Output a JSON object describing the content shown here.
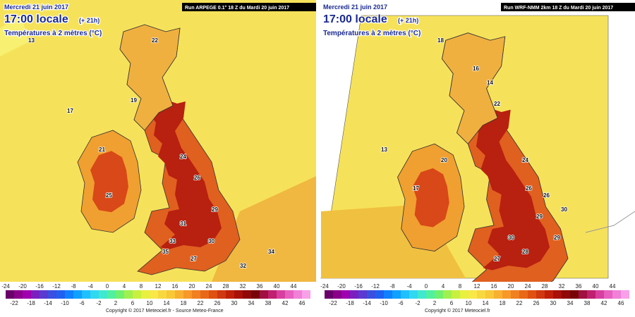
{
  "panels": [
    {
      "date": "Mercredi 21 juin 2017",
      "time": "17:00 locale",
      "lead": "(+ 21h)",
      "variable": "Températures à 2 mètres (°C)",
      "run": "Run ARPEGE 0.1° 18 Z du Mardi 20 juin 2017",
      "copyright": "Copyright © 2017 Meteociel.fr - Source Meteo-France",
      "map_labels": [
        "13",
        "17",
        "21",
        "25",
        "22",
        "19",
        "24",
        "26",
        "29",
        "31",
        "33",
        "35",
        "32",
        "30",
        "27",
        "34"
      ]
    },
    {
      "date": "Mercredi 21 juin 2017",
      "time": "17:00 locale",
      "lead": "(+ 21h)",
      "variable": "Températures à 2 mètres (°C)",
      "run": "Run WRF-NMM 2km 18 Z du Mardi 20 juin 2017",
      "copyright": "Copyright © 2017 Meteociel.fr",
      "map_labels": [
        "13",
        "17",
        "18",
        "20",
        "22",
        "24",
        "26",
        "29",
        "30",
        "30",
        "28",
        "27",
        "29",
        "26",
        "16",
        "14"
      ]
    }
  ],
  "legend": {
    "top_labels": [
      "-24",
      "-20",
      "-16",
      "-12",
      "-8",
      "-4",
      "0",
      "4",
      "8",
      "12",
      "16",
      "20",
      "24",
      "28",
      "32",
      "36",
      "40",
      "44"
    ],
    "bottom_labels": [
      "-22",
      "-18",
      "-14",
      "-10",
      "-6",
      "-2",
      "2",
      "6",
      "10",
      "14",
      "18",
      "22",
      "26",
      "30",
      "34",
      "38",
      "42",
      "46"
    ],
    "colors": [
      "#6a006a",
      "#8a008a",
      "#a000b0",
      "#7a20c0",
      "#5a3ad0",
      "#3a50e0",
      "#2060f0",
      "#1080ff",
      "#10a0ff",
      "#20c0ff",
      "#30d8f0",
      "#40e8d0",
      "#50f0a0",
      "#70f070",
      "#a0f050",
      "#c8f040",
      "#e8f040",
      "#f8e848",
      "#f8d840",
      "#f8c838",
      "#f8b030",
      "#f89828",
      "#f08020",
      "#e86818",
      "#e05010",
      "#d03810",
      "#c02008",
      "#a81008",
      "#900808",
      "#780408",
      "#a01040",
      "#c02070",
      "#d840a0",
      "#e860c0",
      "#f080d8",
      "#f8a0e8"
    ]
  }
}
